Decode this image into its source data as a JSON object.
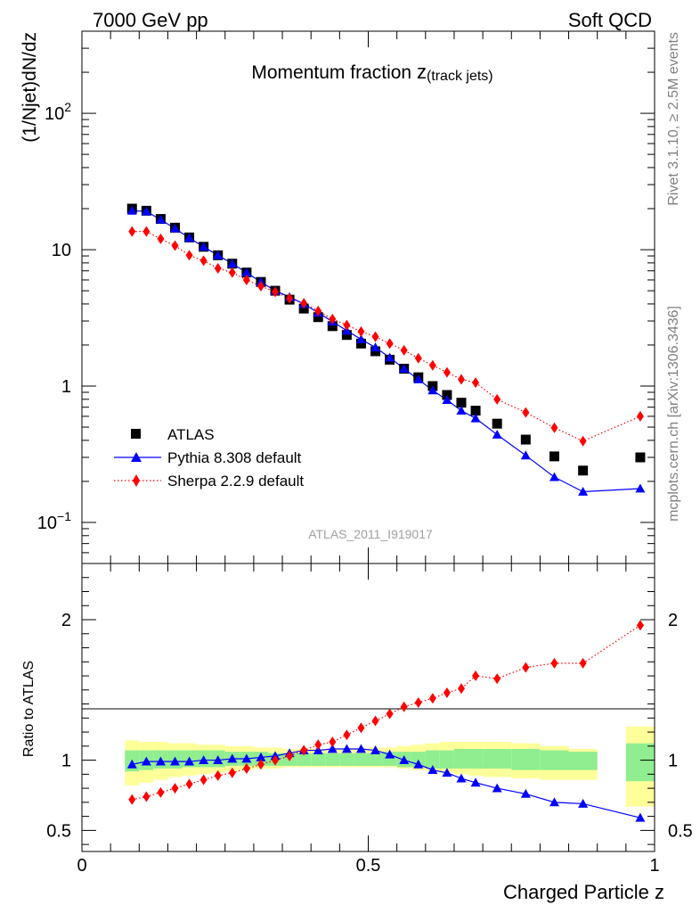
{
  "header": {
    "left_label": "7000 GeV pp",
    "right_label": "Soft QCD"
  },
  "side_text": {
    "rivet": "Rivet 3.1.10, ≥ 2.5M events",
    "mcplots": "mcplots.cern.ch [arXiv:1306.3436]"
  },
  "analysis_id": "ATLAS_2011_I919017",
  "colors": {
    "atlas": "#000000",
    "pythia": "#0000ff",
    "sherpa": "#ff0000",
    "band_inner": "#90ee90",
    "band_outer": "#ffff99"
  },
  "chart_data": [
    {
      "type": "scatter",
      "title_main": "Momentum fraction ",
      "title_var": "z",
      "title_sub": "(track jets)",
      "ylabel": "(1/Njet)dN/dz",
      "xlim": [
        0,
        1
      ],
      "ylim": [
        0.05,
        400
      ],
      "yscale": "log",
      "y_tick_labels": [
        {
          "value": 0.1,
          "base": "10",
          "exp": "−1"
        },
        {
          "value": 1,
          "base": "1",
          "exp": ""
        },
        {
          "value": 10,
          "base": "10",
          "exp": ""
        },
        {
          "value": 100,
          "base": "10",
          "exp": "2"
        }
      ],
      "legend_position": "bottom-left",
      "x": [
        0.0875,
        0.1125,
        0.1375,
        0.1625,
        0.1875,
        0.2125,
        0.2375,
        0.2625,
        0.2875,
        0.3125,
        0.3375,
        0.3625,
        0.3875,
        0.4125,
        0.4375,
        0.4625,
        0.4875,
        0.5125,
        0.5375,
        0.5625,
        0.5875,
        0.6125,
        0.6375,
        0.6625,
        0.6875,
        0.725,
        0.775,
        0.825,
        0.875,
        0.975
      ],
      "series": [
        {
          "name": "ATLAS",
          "style": "square",
          "values": [
            20.0,
            19.3,
            16.8,
            14.5,
            12.3,
            10.5,
            9.1,
            7.9,
            6.8,
            5.8,
            5.0,
            4.3,
            3.7,
            3.2,
            2.75,
            2.37,
            2.05,
            1.8,
            1.56,
            1.34,
            1.16,
            1.0,
            0.86,
            0.755,
            0.66,
            0.53,
            0.405,
            0.305,
            0.24,
            0.3
          ]
        },
        {
          "name": "Pythia 8.308 default",
          "style": "triangle-line",
          "values": [
            19.3,
            19.1,
            16.6,
            14.3,
            12.2,
            10.5,
            9.1,
            7.9,
            6.8,
            5.8,
            5.0,
            4.5,
            4.0,
            3.45,
            2.97,
            2.55,
            2.2,
            1.92,
            1.62,
            1.34,
            1.12,
            0.93,
            0.79,
            0.66,
            0.58,
            0.44,
            0.31,
            0.215,
            0.168,
            0.177
          ]
        },
        {
          "name": "Sherpa 2.2.9 default",
          "style": "diamond-dotted",
          "values": [
            13.6,
            13.6,
            12.0,
            10.7,
            9.1,
            8.3,
            7.3,
            6.8,
            6.0,
            5.4,
            4.9,
            4.4,
            4.05,
            3.55,
            3.1,
            2.8,
            2.51,
            2.3,
            2.05,
            1.83,
            1.6,
            1.42,
            1.26,
            1.12,
            1.06,
            0.8,
            0.64,
            0.495,
            0.395,
            0.6
          ]
        }
      ]
    },
    {
      "type": "scatter",
      "ylabel": "Ratio to ATLAS",
      "xlabel": "Charged Particle z",
      "xlim": [
        0,
        1
      ],
      "ylim": [
        0.35,
        2.4
      ],
      "x_tick_labels": [
        {
          "value": 0,
          "label": "0"
        },
        {
          "value": 0.5,
          "label": "0.5"
        },
        {
          "value": 1,
          "label": "1"
        }
      ],
      "y_tick_labels": [
        {
          "value": 0.5,
          "label": "0.5"
        },
        {
          "value": 1,
          "label": "1"
        },
        {
          "value": 2,
          "label": "2"
        }
      ],
      "bins": [
        [
          0.075,
          0.1
        ],
        [
          0.1,
          0.125
        ],
        [
          0.125,
          0.15
        ],
        [
          0.15,
          0.175
        ],
        [
          0.175,
          0.2
        ],
        [
          0.2,
          0.225
        ],
        [
          0.225,
          0.25
        ],
        [
          0.25,
          0.275
        ],
        [
          0.275,
          0.3
        ],
        [
          0.3,
          0.325
        ],
        [
          0.325,
          0.35
        ],
        [
          0.35,
          0.375
        ],
        [
          0.375,
          0.4
        ],
        [
          0.4,
          0.425
        ],
        [
          0.425,
          0.45
        ],
        [
          0.45,
          0.475
        ],
        [
          0.475,
          0.5
        ],
        [
          0.5,
          0.525
        ],
        [
          0.525,
          0.55
        ],
        [
          0.55,
          0.575
        ],
        [
          0.575,
          0.6
        ],
        [
          0.6,
          0.625
        ],
        [
          0.625,
          0.65
        ],
        [
          0.65,
          0.675
        ],
        [
          0.675,
          0.7
        ],
        [
          0.7,
          0.75
        ],
        [
          0.75,
          0.8
        ],
        [
          0.8,
          0.85
        ],
        [
          0.85,
          0.9
        ],
        [
          0.95,
          1.0
        ]
      ],
      "band_inner": [
        [
          0.92,
          1.07
        ],
        [
          0.93,
          1.07
        ],
        [
          0.94,
          1.07
        ],
        [
          0.94,
          1.07
        ],
        [
          0.95,
          1.07
        ],
        [
          0.95,
          1.07
        ],
        [
          0.95,
          1.07
        ],
        [
          0.96,
          1.06
        ],
        [
          0.96,
          1.06
        ],
        [
          0.96,
          1.06
        ],
        [
          0.96,
          1.05
        ],
        [
          0.96,
          1.05
        ],
        [
          0.96,
          1.05
        ],
        [
          0.96,
          1.05
        ],
        [
          0.96,
          1.05
        ],
        [
          0.96,
          1.05
        ],
        [
          0.96,
          1.05
        ],
        [
          0.96,
          1.05
        ],
        [
          0.96,
          1.06
        ],
        [
          0.95,
          1.06
        ],
        [
          0.95,
          1.06
        ],
        [
          0.94,
          1.07
        ],
        [
          0.94,
          1.07
        ],
        [
          0.94,
          1.08
        ],
        [
          0.94,
          1.08
        ],
        [
          0.94,
          1.08
        ],
        [
          0.93,
          1.08
        ],
        [
          0.93,
          1.07
        ],
        [
          0.93,
          1.06
        ],
        [
          0.85,
          1.12
        ]
      ],
      "band_outer": [
        [
          0.82,
          1.14
        ],
        [
          0.84,
          1.13
        ],
        [
          0.86,
          1.13
        ],
        [
          0.88,
          1.12
        ],
        [
          0.89,
          1.12
        ],
        [
          0.9,
          1.11
        ],
        [
          0.91,
          1.11
        ],
        [
          0.92,
          1.1
        ],
        [
          0.93,
          1.1
        ],
        [
          0.94,
          1.09
        ],
        [
          0.94,
          1.09
        ],
        [
          0.95,
          1.08
        ],
        [
          0.95,
          1.08
        ],
        [
          0.95,
          1.08
        ],
        [
          0.95,
          1.08
        ],
        [
          0.95,
          1.08
        ],
        [
          0.95,
          1.08
        ],
        [
          0.95,
          1.09
        ],
        [
          0.95,
          1.09
        ],
        [
          0.94,
          1.1
        ],
        [
          0.93,
          1.11
        ],
        [
          0.92,
          1.12
        ],
        [
          0.91,
          1.13
        ],
        [
          0.9,
          1.13
        ],
        [
          0.89,
          1.13
        ],
        [
          0.88,
          1.13
        ],
        [
          0.87,
          1.12
        ],
        [
          0.86,
          1.1
        ],
        [
          0.86,
          1.08
        ],
        [
          0.67,
          1.24
        ]
      ],
      "series": [
        {
          "name": "Pythia 8.308 default",
          "style": "triangle-line",
          "values": [
            0.97,
            0.99,
            0.99,
            0.99,
            0.99,
            1.0,
            1.0,
            1.01,
            1.01,
            1.02,
            1.03,
            1.05,
            1.07,
            1.07,
            1.08,
            1.08,
            1.08,
            1.07,
            1.04,
            1.0,
            0.97,
            0.93,
            0.91,
            0.87,
            0.84,
            0.8,
            0.76,
            0.7,
            0.69,
            0.59
          ]
        },
        {
          "name": "Sherpa 2.2.9 default",
          "style": "diamond-dotted",
          "values": [
            0.72,
            0.74,
            0.77,
            0.8,
            0.83,
            0.86,
            0.89,
            0.91,
            0.94,
            0.97,
            1.0,
            1.03,
            1.07,
            1.11,
            1.13,
            1.18,
            1.23,
            1.28,
            1.33,
            1.38,
            1.41,
            1.44,
            1.48,
            1.51,
            1.6,
            1.58,
            1.66,
            1.69,
            1.69,
            1.96
          ]
        }
      ]
    }
  ]
}
